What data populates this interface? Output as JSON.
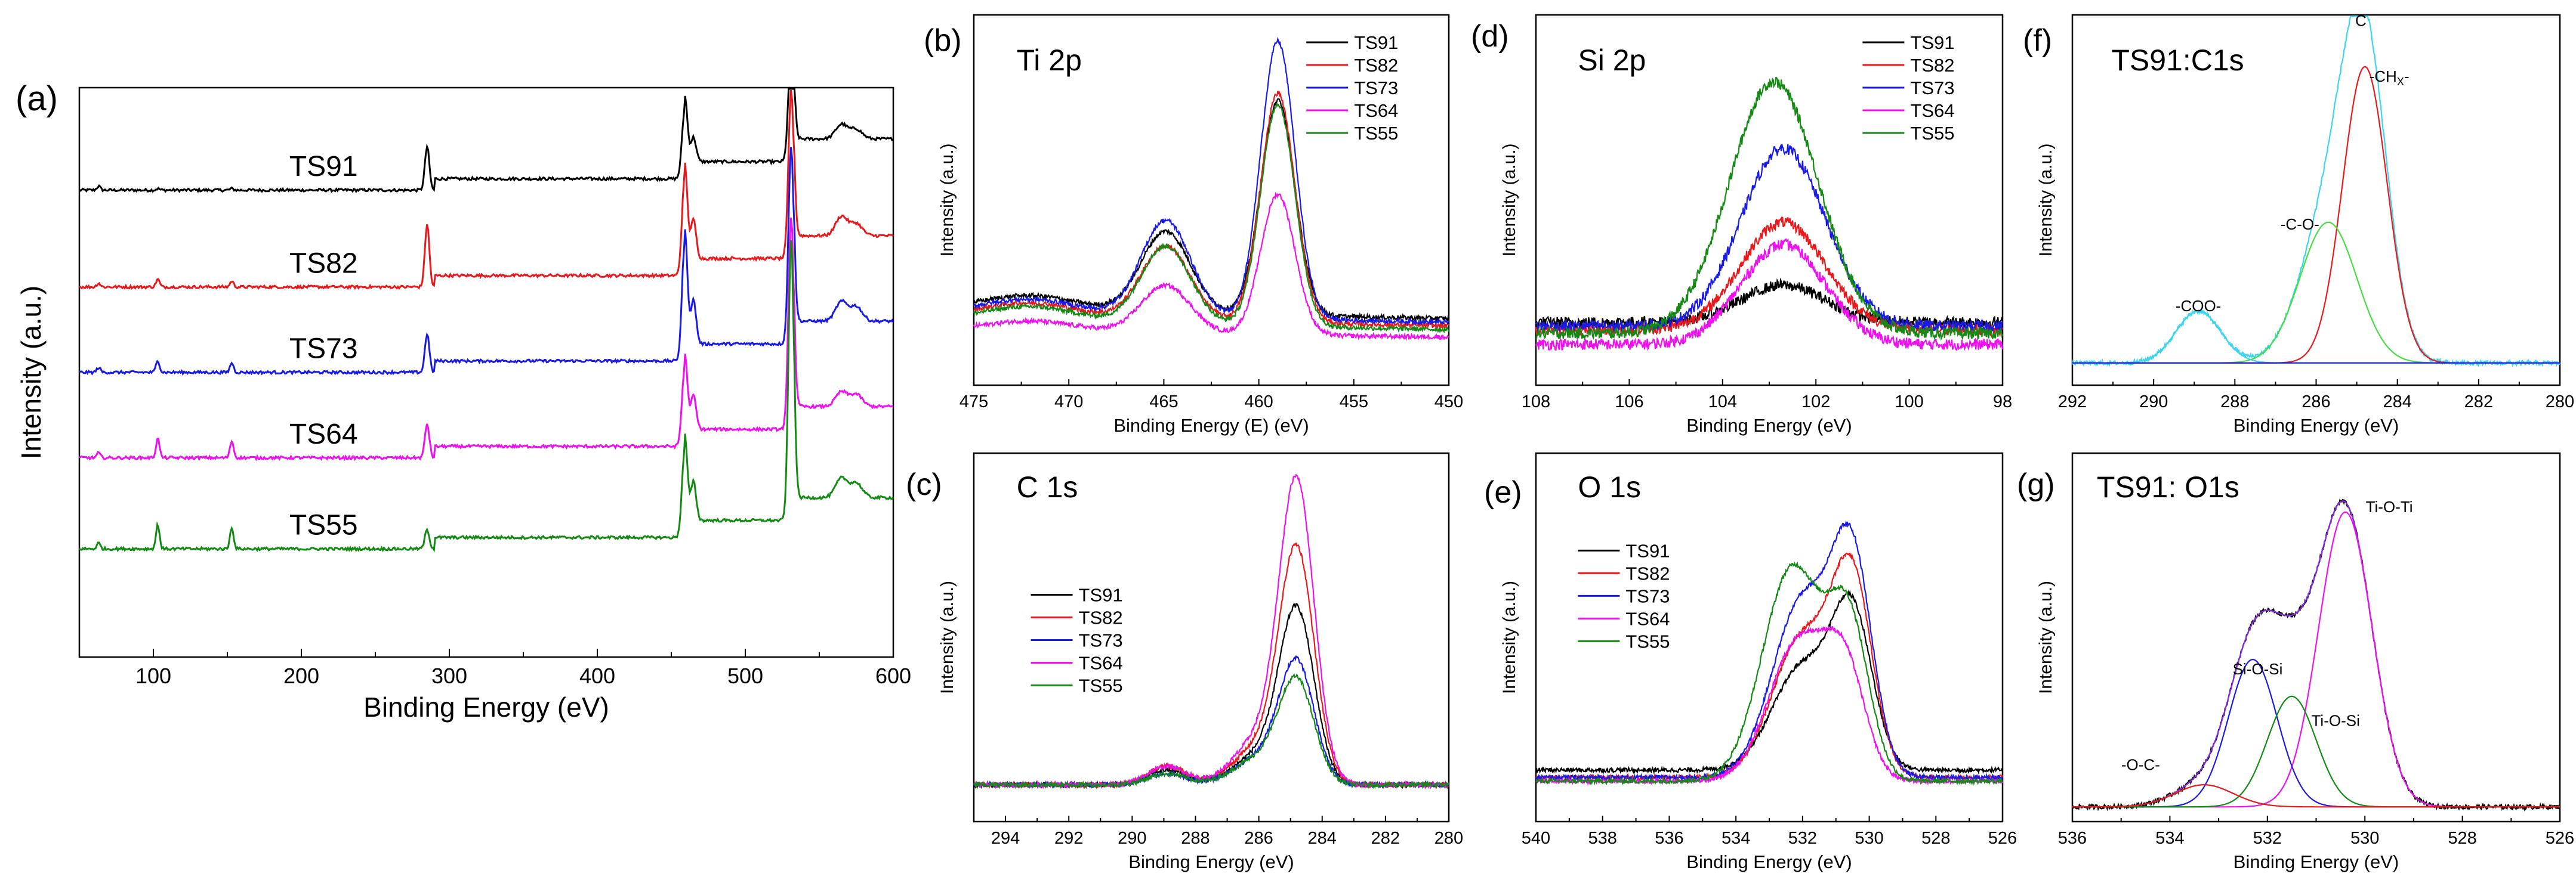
{
  "figure": {
    "panels": [
      "a",
      "b",
      "c",
      "d",
      "e",
      "f",
      "g"
    ],
    "panel_letters": {
      "a": "(a)",
      "b": "(b)",
      "c": "(c)",
      "d": "(d)",
      "e": "(e)",
      "f": "(f)",
      "g": "(g)"
    }
  },
  "colors": {
    "TS91": "#000000",
    "TS82": "#e8191c",
    "TS73": "#1a1ae6",
    "TS64": "#ee10ee",
    "TS55": "#138a13",
    "cyan": "#3cd5ee",
    "green_fit": "#44dd44"
  },
  "chart_data": [
    {
      "id": "a",
      "type": "line",
      "title": "",
      "xlabel": "Binding Energy (eV)",
      "ylabel": "Intensity (a.u.)",
      "xlim": [
        50,
        600
      ],
      "ylim": [
        0,
        100
      ],
      "xticks": [
        100,
        200,
        300,
        400,
        500,
        600
      ],
      "xtick_labels": [
        "100",
        "200",
        "300",
        "400",
        "500",
        "600"
      ],
      "series": [
        {
          "name": "TS91",
          "label": "TS91",
          "color": "#000000",
          "offset": 82,
          "scale": 0.28,
          "peaks": [
            [
              63,
              0.8,
              1.2
            ],
            [
              103,
              0.3,
              1.2
            ],
            [
              153,
              0.3,
              1.2
            ],
            [
              285,
              9,
              1.5
            ],
            [
              459,
              14,
              1.8
            ],
            [
              465,
              5,
              1.8
            ],
            [
              531,
              26,
              1.8
            ],
            [
              565,
              3,
              4
            ],
            [
              575,
              2,
              4
            ]
          ]
        },
        {
          "name": "TS82",
          "label": "TS82",
          "color": "#e8191c",
          "offset": 65,
          "scale": 0.28,
          "peaks": [
            [
              63,
              0.8,
              1.2
            ],
            [
              103,
              1.6,
              1.2
            ],
            [
              153,
              1.2,
              1.2
            ],
            [
              285,
              13,
              1.5
            ],
            [
              459,
              20,
              1.8
            ],
            [
              465,
              8,
              1.8
            ],
            [
              531,
              35,
              1.8
            ],
            [
              565,
              4,
              4
            ],
            [
              575,
              2.5,
              4
            ]
          ]
        },
        {
          "name": "TS73",
          "label": "TS73",
          "color": "#1a1ae6",
          "offset": 50,
          "scale": 0.28,
          "peaks": [
            [
              63,
              1,
              1.2
            ],
            [
              103,
              2.5,
              1.2
            ],
            [
              153,
              2,
              1.2
            ],
            [
              285,
              8,
              1.5
            ],
            [
              459,
              24,
              1.8
            ],
            [
              465,
              9,
              1.8
            ],
            [
              531,
              41,
              1.8
            ],
            [
              565,
              4,
              4
            ],
            [
              575,
              3,
              4
            ]
          ]
        },
        {
          "name": "TS64",
          "label": "TS64",
          "color": "#ee10ee",
          "offset": 35,
          "scale": 0.28,
          "peaks": [
            [
              63,
              1,
              1.2
            ],
            [
              103,
              4,
              1.2
            ],
            [
              153,
              3.5,
              1.2
            ],
            [
              285,
              7,
              1.5
            ],
            [
              459,
              16,
              1.8
            ],
            [
              465,
              7,
              1.8
            ],
            [
              531,
              44,
              1.8
            ],
            [
              565,
              3,
              4
            ],
            [
              575,
              2.5,
              4
            ]
          ]
        },
        {
          "name": "TS55",
          "label": "TS55",
          "color": "#138a13",
          "offset": 19,
          "scale": 0.28,
          "peaks": [
            [
              63,
              1.2,
              1.2
            ],
            [
              103,
              5,
              1.2
            ],
            [
              153,
              4.5,
              1.2
            ],
            [
              285,
              4,
              1.5
            ],
            [
              459,
              18,
              1.8
            ],
            [
              465,
              8,
              1.8
            ],
            [
              531,
              58,
              1.8
            ],
            [
              565,
              4,
              4
            ],
            [
              575,
              3,
              4
            ]
          ]
        }
      ]
    },
    {
      "id": "b",
      "type": "line",
      "title": "Ti 2p",
      "xlabel": "Binding Energy (E) (eV)",
      "ylabel": "Intensity (a.u.)",
      "xlim": [
        475,
        450
      ],
      "ylim": [
        0,
        100
      ],
      "xticks": [
        475,
        470,
        465,
        460,
        455,
        450
      ],
      "xtick_labels": [
        "475",
        "470",
        "465",
        "460",
        "455",
        "450"
      ],
      "legend": [
        "TS91",
        "TS82",
        "TS73",
        "TS64",
        "TS55"
      ],
      "series": [
        {
          "name": "TS91",
          "color": "#000000",
          "peaks": [
            [
              459,
              58,
              0.9
            ],
            [
              464.9,
              22,
              1.3
            ],
            [
              472,
              4,
              2.5
            ]
          ],
          "base": 18,
          "slope": 0.25
        },
        {
          "name": "TS82",
          "color": "#e8191c",
          "peaks": [
            [
              459,
              62,
              0.9
            ],
            [
              464.9,
              20,
              1.3
            ],
            [
              472,
              4,
              2.5
            ]
          ],
          "base": 16,
          "slope": 0.25
        },
        {
          "name": "TS73",
          "color": "#1a1ae6",
          "peaks": [
            [
              459,
              75,
              0.9
            ],
            [
              464.9,
              26,
              1.3
            ],
            [
              472,
              4,
              2.5
            ]
          ],
          "base": 17,
          "slope": 0.25
        },
        {
          "name": "TS64",
          "color": "#ee10ee",
          "peaks": [
            [
              459,
              38,
              0.9
            ],
            [
              464.9,
              13,
              1.3
            ],
            [
              472,
              3,
              2.5
            ]
          ],
          "base": 13,
          "slope": 0.15
        },
        {
          "name": "TS55",
          "color": "#138a13",
          "peaks": [
            [
              459,
              60,
              0.9
            ],
            [
              464.9,
              21,
              1.3
            ],
            [
              472,
              4,
              2.5
            ]
          ],
          "base": 15,
          "slope": 0.25
        }
      ]
    },
    {
      "id": "c",
      "type": "line",
      "title": "C 1s",
      "xlabel": "Binding Energy (eV)",
      "ylabel": "Intensity (a.u.)",
      "xlim": [
        295,
        280
      ],
      "ylim": [
        0,
        100
      ],
      "xticks": [
        294,
        292,
        290,
        288,
        286,
        284,
        282,
        280
      ],
      "xtick_labels": [
        "294",
        "292",
        "290",
        "288",
        "286",
        "284",
        "282",
        "280"
      ],
      "legend": [
        "TS91",
        "TS82",
        "TS73",
        "TS64",
        "TS55"
      ],
      "series": [
        {
          "name": "TS91",
          "color": "#000000",
          "peaks": [
            [
              284.8,
              46,
              0.55
            ],
            [
              286,
              8,
              0.8
            ],
            [
              288.9,
              4,
              0.6
            ]
          ],
          "base": 10
        },
        {
          "name": "TS82",
          "color": "#e8191c",
          "peaks": [
            [
              284.8,
              62,
              0.55
            ],
            [
              286,
              10,
              0.8
            ],
            [
              288.9,
              5,
              0.6
            ]
          ],
          "base": 10
        },
        {
          "name": "TS73",
          "color": "#1a1ae6",
          "peaks": [
            [
              284.8,
              32,
              0.55
            ],
            [
              286,
              7,
              0.8
            ],
            [
              288.9,
              3,
              0.6
            ]
          ],
          "base": 10
        },
        {
          "name": "TS64",
          "color": "#ee10ee",
          "peaks": [
            [
              284.8,
              80,
              0.55
            ],
            [
              286,
              12,
              0.8
            ],
            [
              288.9,
              5,
              0.6
            ]
          ],
          "base": 10
        },
        {
          "name": "TS55",
          "color": "#138a13",
          "peaks": [
            [
              284.8,
              27,
              0.55
            ],
            [
              286,
              7,
              0.8
            ],
            [
              288.9,
              3,
              0.6
            ]
          ],
          "base": 10
        }
      ]
    },
    {
      "id": "d",
      "type": "line",
      "title": "Si 2p",
      "xlabel": "Binding Energy (eV)",
      "ylabel": "Intensity (a.u.)",
      "xlim": [
        108,
        98
      ],
      "ylim": [
        0,
        100
      ],
      "xticks": [
        108,
        106,
        104,
        102,
        100,
        98
      ],
      "xtick_labels": [
        "108",
        "106",
        "104",
        "102",
        "100",
        "98"
      ],
      "legend": [
        "TS91",
        "TS82",
        "TS73",
        "TS64",
        "TS55"
      ],
      "series": [
        {
          "name": "TS91",
          "color": "#000000",
          "peaks": [
            [
              102.7,
              10,
              0.9
            ]
          ],
          "base": 17
        },
        {
          "name": "TS82",
          "color": "#e8191c",
          "peaks": [
            [
              102.7,
              29,
              0.9
            ]
          ],
          "base": 15
        },
        {
          "name": "TS73",
          "color": "#1a1ae6",
          "peaks": [
            [
              102.7,
              48,
              0.9
            ]
          ],
          "base": 16
        },
        {
          "name": "TS64",
          "color": "#ee10ee",
          "peaks": [
            [
              102.7,
              27,
              0.9
            ]
          ],
          "base": 11
        },
        {
          "name": "TS55",
          "color": "#138a13",
          "peaks": [
            [
              102.9,
              68,
              0.95
            ]
          ],
          "base": 14
        }
      ]
    },
    {
      "id": "e",
      "type": "line",
      "title": "O 1s",
      "xlabel": "Binding Energy (eV)",
      "ylabel": "Intensity (a.u.)",
      "xlim": [
        540,
        526
      ],
      "ylim": [
        0,
        100
      ],
      "xticks": [
        540,
        538,
        536,
        534,
        532,
        530,
        528,
        526
      ],
      "xtick_labels": [
        "540",
        "538",
        "536",
        "534",
        "532",
        "530",
        "528",
        "526"
      ],
      "legend": [
        "TS91",
        "TS82",
        "TS73",
        "TS64",
        "TS55"
      ],
      "series": [
        {
          "name": "TS91",
          "color": "#000000",
          "peaks": [
            [
              530.5,
              40,
              0.6
            ],
            [
              532.0,
              28,
              0.9
            ]
          ],
          "base": 14
        },
        {
          "name": "TS82",
          "color": "#e8191c",
          "peaks": [
            [
              530.5,
              50,
              0.6
            ],
            [
              532.0,
              38,
              0.9
            ]
          ],
          "base": 12
        },
        {
          "name": "TS73",
          "color": "#1a1ae6",
          "peaks": [
            [
              530.5,
              55,
              0.6
            ],
            [
              532.0,
              48,
              0.9
            ]
          ],
          "base": 12
        },
        {
          "name": "TS64",
          "color": "#ee10ee",
          "peaks": [
            [
              530.7,
              26,
              0.6
            ],
            [
              532.1,
              38,
              0.9
            ]
          ],
          "base": 11
        },
        {
          "name": "TS55",
          "color": "#138a13",
          "peaks": [
            [
              530.6,
              40,
              0.6
            ],
            [
              532.3,
              58,
              0.9
            ]
          ],
          "base": 11
        }
      ]
    },
    {
      "id": "f",
      "type": "line",
      "title": "TS91:C1s",
      "xlabel": "Binding Energy (eV)",
      "ylabel": "Intensity (a.u.)",
      "xlim": [
        292,
        280
      ],
      "ylim": [
        0,
        100
      ],
      "xticks": [
        292,
        290,
        288,
        286,
        284,
        282,
        280
      ],
      "xtick_labels": [
        "292",
        "290",
        "288",
        "286",
        "284",
        "282",
        "280"
      ],
      "annotations": [
        {
          "text": "-COO-",
          "color": "#3cd5ee",
          "x": 288.9,
          "y": 20
        },
        {
          "text": "-C-O-",
          "color": "#44dd44",
          "x": 286.4,
          "y": 42
        },
        {
          "text": "C",
          "color": "#3cd5ee",
          "x": 284.9,
          "y": 97
        },
        {
          "text": "-CH",
          "sub": "X",
          "tail": "-",
          "color": "#e8191c",
          "x": 284.2,
          "y": 82
        }
      ],
      "series": [
        {
          "name": "envelope",
          "color": "#3cd5ee",
          "peaks": [
            [
              284.8,
              80,
              0.55
            ],
            [
              285.7,
              38,
              0.7
            ],
            [
              288.9,
              14,
              0.55
            ]
          ],
          "base": 6
        },
        {
          "name": "-CHX-",
          "color": "#e8191c",
          "peaks": [
            [
              284.8,
              80,
              0.55
            ]
          ],
          "base": 6
        },
        {
          "name": "-C-O-",
          "color": "#44dd44",
          "peaks": [
            [
              285.7,
              38,
              0.7
            ]
          ],
          "base": 6
        },
        {
          "name": "-COO-",
          "color": "#3cd5ee",
          "peaks": [
            [
              288.9,
              14,
              0.55
            ]
          ],
          "base": 6
        },
        {
          "name": "background",
          "color": "#1a1ae6",
          "peaks": [],
          "base": 6
        }
      ]
    },
    {
      "id": "g",
      "type": "line",
      "title": "TS91: O1s",
      "xlabel": "Binding Energy (eV)",
      "ylabel": "Intensity (a.u.)",
      "xlim": [
        536,
        526
      ],
      "ylim": [
        0,
        100
      ],
      "xticks": [
        536,
        534,
        532,
        530,
        528,
        526
      ],
      "xtick_labels": [
        "536",
        "534",
        "532",
        "530",
        "528",
        "526"
      ],
      "annotations": [
        {
          "text": "Ti-O-Ti",
          "color": "#ee10ee",
          "x": 529.5,
          "y": 84
        },
        {
          "text": "Si-O-Si",
          "color": "#1a1ae6",
          "x": 532.2,
          "y": 40
        },
        {
          "text": "Ti-O-Si",
          "color": "#138a13",
          "x": 530.6,
          "y": 26
        },
        {
          "text": "-O-C-",
          "color": "#e8191c",
          "x": 534.6,
          "y": 14
        }
      ],
      "series": [
        {
          "name": "envelope",
          "color": "#000000",
          "peaks": [
            [
              530.4,
              80,
              0.55
            ],
            [
              531.5,
              30,
              0.5
            ],
            [
              532.3,
              40,
              0.5
            ],
            [
              533.3,
              6,
              0.6
            ]
          ],
          "base": 4
        },
        {
          "name": "fit sum",
          "color": "#8a2be2",
          "peaks": [
            [
              530.4,
              80,
              0.55
            ],
            [
              531.5,
              30,
              0.5
            ],
            [
              532.3,
              40,
              0.5
            ],
            [
              533.3,
              6,
              0.6
            ]
          ],
          "base": 4
        },
        {
          "name": "Ti-O-Ti",
          "color": "#ee10ee",
          "peaks": [
            [
              530.4,
              80,
              0.55
            ]
          ],
          "base": 4
        },
        {
          "name": "Si-O-Si",
          "color": "#1a1ae6",
          "peaks": [
            [
              532.3,
              40,
              0.5
            ]
          ],
          "base": 4
        },
        {
          "name": "Ti-O-Si",
          "color": "#138a13",
          "peaks": [
            [
              531.5,
              30,
              0.5
            ]
          ],
          "base": 4
        },
        {
          "name": "-O-C-",
          "color": "#e8191c",
          "peaks": [
            [
              533.3,
              6,
              0.6
            ]
          ],
          "base": 4
        }
      ]
    }
  ]
}
